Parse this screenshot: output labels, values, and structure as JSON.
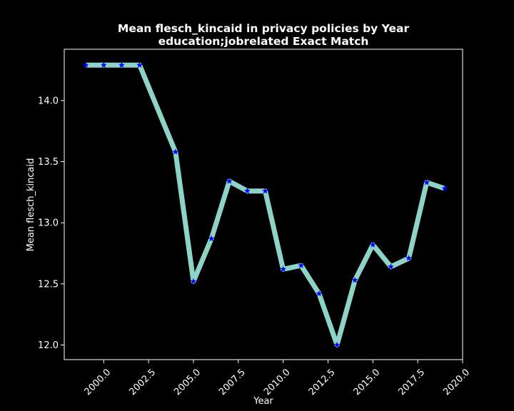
{
  "chart_data": {
    "type": "line",
    "title": "Mean flesch_kincaid in privacy policies by Year",
    "subtitle": "education;jobrelated Exact Match",
    "xlabel": "Year",
    "ylabel": "Mean flesch_kincaid",
    "xlim": [
      1997.8,
      2020.0
    ],
    "ylim": [
      11.88,
      14.42
    ],
    "xticks": [
      "2000.0",
      "2002.5",
      "2005.0",
      "2007.5",
      "2010.0",
      "2012.5",
      "2015.0",
      "2017.5",
      "2020.0"
    ],
    "xtick_values": [
      2000.0,
      2002.5,
      2005.0,
      2007.5,
      2010.0,
      2012.5,
      2015.0,
      2017.5,
      2020.0
    ],
    "yticks": [
      "12.0",
      "12.5",
      "13.0",
      "13.5",
      "14.0"
    ],
    "ytick_values": [
      12.0,
      12.5,
      13.0,
      13.5,
      14.0
    ],
    "grid": false,
    "line_color": "#8dd3c7",
    "marker_color": "#0000ff",
    "background": "#000000",
    "series": [
      {
        "x": [
          1999,
          2000,
          2001,
          2002,
          2004,
          2005,
          2006,
          2007,
          2008,
          2009,
          2010,
          2011,
          2012,
          2013,
          2014,
          2015,
          2016,
          2017,
          2018,
          2019
        ],
        "y": [
          14.29,
          14.29,
          14.29,
          14.29,
          13.58,
          12.52,
          12.87,
          13.34,
          13.26,
          13.26,
          12.62,
          12.65,
          12.42,
          12.0,
          12.53,
          12.82,
          12.64,
          12.71,
          13.33,
          13.28
        ]
      }
    ]
  }
}
